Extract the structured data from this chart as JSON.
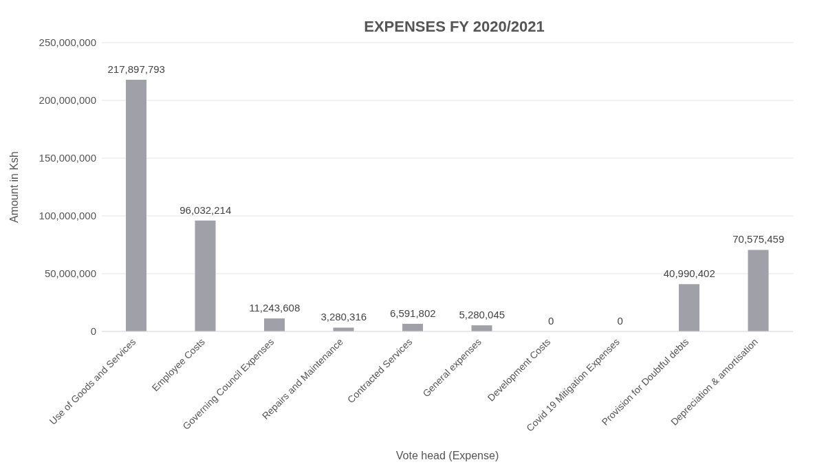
{
  "chart_data": {
    "type": "bar",
    "title": "EXPENSES FY 2020/2021",
    "xlabel": "Vote head (Expense)",
    "ylabel": "Amount in Ksh",
    "categories": [
      "Use of Goods and Services",
      "Employee Costs",
      "Governing Council Expenses",
      "Repairs and Maintenance",
      "Contracted Services",
      "General expenses",
      "Development Costs",
      "Covid 19 Mitigation Expenses",
      "Provision for Doubtful debts",
      "Depreciation & amortisation"
    ],
    "values": [
      217897793,
      96032214,
      11243608,
      3280316,
      6591802,
      5280045,
      0,
      0,
      40990402,
      70575459
    ],
    "value_labels": [
      "217,897,793",
      "96,032,214",
      "11,243,608",
      "3,280,316",
      "6,591,802",
      "5,280,045",
      "0",
      "0",
      "40,990,402",
      "70,575,459"
    ],
    "color": "#a0a0a8",
    "ylim": [
      0,
      250000000
    ],
    "yticks": [
      0,
      {
        "value": 50000000,
        "label": "50,000,000"
      },
      {
        "value": 100000000,
        "label": "100,000,000"
      },
      {
        "value": 150000000,
        "label": "150,000,000"
      },
      {
        "value": 200000000,
        "label": "200,000,000"
      },
      {
        "value": 250000000,
        "label": "250,000,000"
      }
    ],
    "grid": "y"
  }
}
